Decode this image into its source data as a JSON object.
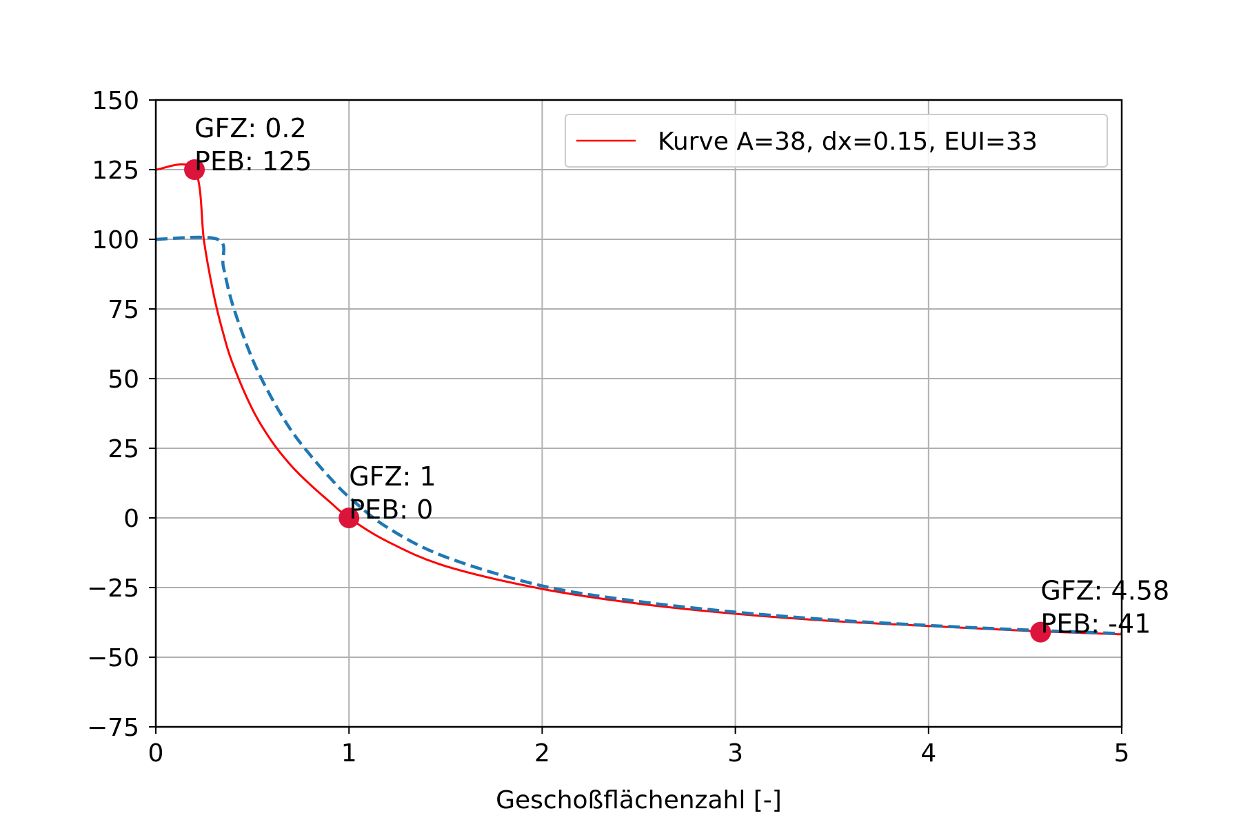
{
  "chart_data": {
    "type": "line",
    "title": "",
    "xlabel": "Geschoßflächenzahl [-]",
    "ylabel": "",
    "xlim": [
      0,
      5
    ],
    "ylim": [
      -75,
      150
    ],
    "xticks": [
      0,
      1,
      2,
      3,
      4,
      5
    ],
    "xtick_labels": [
      "0",
      "1",
      "2",
      "3",
      "4",
      "5"
    ],
    "yticks": [
      -75,
      -50,
      -25,
      0,
      25,
      50,
      75,
      100,
      125,
      150
    ],
    "ytick_labels": [
      "−75",
      "−50",
      "−25",
      "0",
      "25",
      "50",
      "75",
      "100",
      "125",
      "150"
    ],
    "grid": true,
    "legend_position": "top-right",
    "series": [
      {
        "name": "Kurve A=38, dx=0.15, EUI=33",
        "style": "solid",
        "color": "#ff0000",
        "x": [
          0,
          0.2,
          0.25,
          0.3,
          0.35,
          0.4,
          0.5,
          0.6,
          0.7,
          0.8,
          0.9,
          1.0,
          1.2,
          1.5,
          2.0,
          2.5,
          3.0,
          3.5,
          4.0,
          4.5,
          5.0
        ],
        "y": [
          125,
          125,
          99,
          80,
          66,
          55,
          39,
          27.5,
          18.8,
          11.9,
          5.8,
          0,
          -8.5,
          -17.3,
          -25.5,
          -30.8,
          -34.4,
          -37.0,
          -38.8,
          -40.5,
          -41.8
        ]
      },
      {
        "name": "",
        "style": "dashed",
        "color": "#1f77b4",
        "x": [
          0,
          0.32,
          0.35,
          0.4,
          0.5,
          0.6,
          0.7,
          0.8,
          0.9,
          1.0,
          1.2,
          1.5,
          2.0,
          2.5,
          3.0,
          3.5,
          4.0,
          4.5,
          5.0
        ],
        "y": [
          100,
          100,
          90,
          76,
          57,
          43,
          31.5,
          22.5,
          14.5,
          7.5,
          -3.5,
          -14,
          -24.4,
          -30.0,
          -33.8,
          -36.6,
          -38.6,
          -40.2,
          -41.5
        ]
      }
    ],
    "points": [
      {
        "x": 0.2,
        "y": 125,
        "label_line1": "GFZ: 0.2",
        "label_line2": "PEB: 125"
      },
      {
        "x": 1.0,
        "y": 0,
        "label_line1": "GFZ: 1",
        "label_line2": "PEB: 0"
      },
      {
        "x": 4.58,
        "y": -41,
        "label_line1": "GFZ: 4.58",
        "label_line2": "PEB: -41"
      }
    ],
    "point_color": "#dc143c"
  }
}
